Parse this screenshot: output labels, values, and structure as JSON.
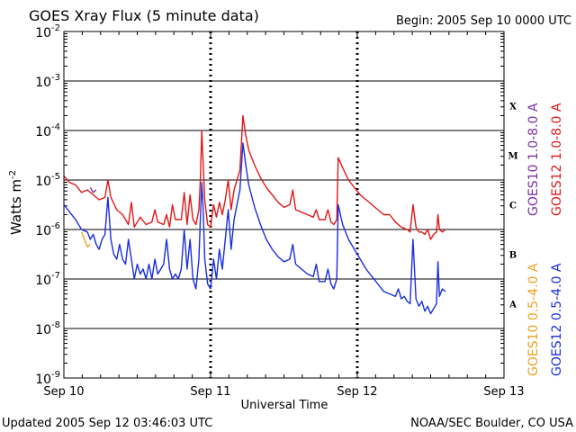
{
  "chart_data": {
    "type": "line",
    "title": "GOES Xray Flux (5 minute data)",
    "begin_label": "Begin:  2005 Sep 10 0000 UTC",
    "xlabel": "Universal Time",
    "ylabel_main": "Watts m",
    "ylabel_exp": "-2",
    "x_ticks": [
      "Sep 10",
      "Sep 11",
      "Sep 12",
      "Sep 13"
    ],
    "xlim_days": [
      0,
      3
    ],
    "ylim_log10": [
      -9,
      -2
    ],
    "y_ticks": [
      {
        "base": "10",
        "exp": "-2"
      },
      {
        "base": "10",
        "exp": "-3"
      },
      {
        "base": "10",
        "exp": "-4"
      },
      {
        "base": "10",
        "exp": "-5"
      },
      {
        "base": "10",
        "exp": "-6"
      },
      {
        "base": "10",
        "exp": "-7"
      },
      {
        "base": "10",
        "exp": "-8"
      },
      {
        "base": "10",
        "exp": "-9"
      }
    ],
    "flare_classes": [
      {
        "label": "X",
        "level_log10": -3.5
      },
      {
        "label": "M",
        "level_log10": -4.5
      },
      {
        "label": "C",
        "level_log10": -5.5
      },
      {
        "label": "B",
        "level_log10": -6.5
      },
      {
        "label": "A",
        "level_log10": -7.5
      }
    ],
    "legend": [
      {
        "name": "GOES10 1.0-8.0 A",
        "color": "#7b2fa8"
      },
      {
        "name": "GOES12 1.0-8.0 A",
        "color": "#e01818"
      },
      {
        "name": "GOES10 0.5-4.0 A",
        "color": "#f0a020"
      },
      {
        "name": "GOES12 0.5-4.0 A",
        "color": "#1a2ee0"
      }
    ],
    "series": [
      {
        "name": "GOES12 1.0-8.0 A",
        "color": "#e01818",
        "points": [
          [
            0.0,
            -4.92
          ],
          [
            0.04,
            -5.05
          ],
          [
            0.08,
            -5.1
          ],
          [
            0.12,
            -5.25
          ],
          [
            0.16,
            -5.2
          ],
          [
            0.2,
            -5.3
          ],
          [
            0.24,
            -5.4
          ],
          [
            0.28,
            -5.35
          ],
          [
            0.3,
            -5.0
          ],
          [
            0.32,
            -5.35
          ],
          [
            0.36,
            -5.6
          ],
          [
            0.4,
            -5.7
          ],
          [
            0.44,
            -5.9
          ],
          [
            0.46,
            -5.45
          ],
          [
            0.48,
            -5.95
          ],
          [
            0.52,
            -5.75
          ],
          [
            0.56,
            -5.9
          ],
          [
            0.6,
            -5.85
          ],
          [
            0.62,
            -5.6
          ],
          [
            0.64,
            -5.85
          ],
          [
            0.68,
            -5.9
          ],
          [
            0.7,
            -5.7
          ],
          [
            0.72,
            -5.95
          ],
          [
            0.74,
            -5.5
          ],
          [
            0.76,
            -5.8
          ],
          [
            0.8,
            -5.8
          ],
          [
            0.82,
            -5.25
          ],
          [
            0.84,
            -5.9
          ],
          [
            0.86,
            -5.3
          ],
          [
            0.88,
            -5.8
          ],
          [
            0.9,
            -5.9
          ],
          [
            0.92,
            -5.6
          ],
          [
            0.93,
            -5.0
          ],
          [
            0.94,
            -4.0
          ],
          [
            0.95,
            -4.7
          ],
          [
            0.96,
            -5.4
          ],
          [
            0.98,
            -5.9
          ],
          [
            1.0,
            -5.95
          ],
          [
            1.02,
            -5.5
          ],
          [
            1.04,
            -5.75
          ],
          [
            1.06,
            -5.45
          ],
          [
            1.08,
            -5.7
          ],
          [
            1.1,
            -5.4
          ],
          [
            1.12,
            -5.0
          ],
          [
            1.14,
            -5.6
          ],
          [
            1.16,
            -5.2
          ],
          [
            1.18,
            -5.0
          ],
          [
            1.2,
            -4.8
          ],
          [
            1.22,
            -3.7
          ],
          [
            1.24,
            -4.1
          ],
          [
            1.26,
            -4.4
          ],
          [
            1.3,
            -4.7
          ],
          [
            1.34,
            -4.95
          ],
          [
            1.38,
            -5.15
          ],
          [
            1.42,
            -5.3
          ],
          [
            1.46,
            -5.45
          ],
          [
            1.5,
            -5.55
          ],
          [
            1.54,
            -5.5
          ],
          [
            1.56,
            -5.2
          ],
          [
            1.58,
            -5.6
          ],
          [
            1.62,
            -5.65
          ],
          [
            1.66,
            -5.7
          ],
          [
            1.7,
            -5.75
          ],
          [
            1.72,
            -5.6
          ],
          [
            1.74,
            -5.8
          ],
          [
            1.78,
            -5.8
          ],
          [
            1.8,
            -5.6
          ],
          [
            1.82,
            -5.85
          ],
          [
            1.84,
            -5.9
          ],
          [
            1.86,
            -5.8
          ],
          [
            1.87,
            -4.55
          ],
          [
            1.9,
            -4.75
          ],
          [
            1.94,
            -5.0
          ],
          [
            1.98,
            -5.15
          ],
          [
            2.02,
            -5.3
          ],
          [
            2.06,
            -5.4
          ],
          [
            2.1,
            -5.5
          ],
          [
            2.14,
            -5.6
          ],
          [
            2.18,
            -5.7
          ],
          [
            2.22,
            -5.7
          ],
          [
            2.26,
            -5.85
          ],
          [
            2.3,
            -5.95
          ],
          [
            2.34,
            -6.0
          ],
          [
            2.36,
            -6.05
          ],
          [
            2.38,
            -5.5
          ],
          [
            2.4,
            -5.95
          ],
          [
            2.42,
            -6.05
          ],
          [
            2.44,
            -6.05
          ],
          [
            2.46,
            -6.1
          ],
          [
            2.48,
            -6.0
          ],
          [
            2.5,
            -6.2
          ],
          [
            2.52,
            -6.1
          ],
          [
            2.54,
            -6.05
          ],
          [
            2.55,
            -5.7
          ],
          [
            2.56,
            -6.0
          ],
          [
            2.58,
            -6.05
          ],
          [
            2.6,
            -6.0
          ]
        ]
      },
      {
        "name": "GOES12 0.5-4.0 A",
        "color": "#1a2ee0",
        "points": [
          [
            0.0,
            -5.5
          ],
          [
            0.04,
            -5.65
          ],
          [
            0.08,
            -5.8
          ],
          [
            0.12,
            -6.0
          ],
          [
            0.16,
            -6.05
          ],
          [
            0.18,
            -6.2
          ],
          [
            0.2,
            -6.1
          ],
          [
            0.22,
            -6.3
          ],
          [
            0.24,
            -6.4
          ],
          [
            0.26,
            -6.2
          ],
          [
            0.28,
            -6.1
          ],
          [
            0.3,
            -5.35
          ],
          [
            0.32,
            -6.2
          ],
          [
            0.34,
            -6.5
          ],
          [
            0.36,
            -6.6
          ],
          [
            0.38,
            -6.3
          ],
          [
            0.4,
            -6.6
          ],
          [
            0.42,
            -6.7
          ],
          [
            0.44,
            -6.2
          ],
          [
            0.46,
            -6.6
          ],
          [
            0.48,
            -7.0
          ],
          [
            0.5,
            -6.7
          ],
          [
            0.52,
            -6.9
          ],
          [
            0.54,
            -6.8
          ],
          [
            0.56,
            -7.0
          ],
          [
            0.58,
            -6.7
          ],
          [
            0.6,
            -7.0
          ],
          [
            0.62,
            -6.6
          ],
          [
            0.64,
            -6.9
          ],
          [
            0.66,
            -6.8
          ],
          [
            0.68,
            -6.7
          ],
          [
            0.7,
            -6.2
          ],
          [
            0.72,
            -6.8
          ],
          [
            0.74,
            -7.0
          ],
          [
            0.76,
            -6.9
          ],
          [
            0.78,
            -7.0
          ],
          [
            0.8,
            -6.8
          ],
          [
            0.82,
            -6.0
          ],
          [
            0.84,
            -6.8
          ],
          [
            0.86,
            -6.2
          ],
          [
            0.88,
            -7.0
          ],
          [
            0.9,
            -7.2
          ],
          [
            0.92,
            -6.6
          ],
          [
            0.93,
            -5.8
          ],
          [
            0.94,
            -5.05
          ],
          [
            0.95,
            -5.6
          ],
          [
            0.96,
            -6.6
          ],
          [
            0.98,
            -7.1
          ],
          [
            1.0,
            -7.2
          ],
          [
            1.02,
            -6.6
          ],
          [
            1.04,
            -7.0
          ],
          [
            1.06,
            -6.4
          ],
          [
            1.08,
            -6.8
          ],
          [
            1.1,
            -6.2
          ],
          [
            1.12,
            -5.6
          ],
          [
            1.14,
            -6.4
          ],
          [
            1.16,
            -5.8
          ],
          [
            1.18,
            -5.5
          ],
          [
            1.2,
            -5.2
          ],
          [
            1.22,
            -4.25
          ],
          [
            1.24,
            -4.7
          ],
          [
            1.26,
            -5.1
          ],
          [
            1.3,
            -5.55
          ],
          [
            1.34,
            -5.9
          ],
          [
            1.38,
            -6.2
          ],
          [
            1.42,
            -6.4
          ],
          [
            1.46,
            -6.55
          ],
          [
            1.5,
            -6.65
          ],
          [
            1.54,
            -6.6
          ],
          [
            1.56,
            -6.3
          ],
          [
            1.58,
            -6.7
          ],
          [
            1.62,
            -6.8
          ],
          [
            1.66,
            -6.9
          ],
          [
            1.7,
            -6.95
          ],
          [
            1.72,
            -6.7
          ],
          [
            1.74,
            -7.05
          ],
          [
            1.78,
            -7.05
          ],
          [
            1.8,
            -6.8
          ],
          [
            1.82,
            -7.1
          ],
          [
            1.84,
            -7.2
          ],
          [
            1.86,
            -7.0
          ],
          [
            1.87,
            -5.5
          ],
          [
            1.9,
            -5.9
          ],
          [
            1.94,
            -6.2
          ],
          [
            1.98,
            -6.4
          ],
          [
            2.02,
            -6.6
          ],
          [
            2.06,
            -6.8
          ],
          [
            2.1,
            -6.95
          ],
          [
            2.14,
            -7.1
          ],
          [
            2.18,
            -7.25
          ],
          [
            2.22,
            -7.3
          ],
          [
            2.26,
            -7.35
          ],
          [
            2.28,
            -7.2
          ],
          [
            2.3,
            -7.4
          ],
          [
            2.32,
            -7.35
          ],
          [
            2.34,
            -7.45
          ],
          [
            2.36,
            -7.5
          ],
          [
            2.38,
            -6.2
          ],
          [
            2.4,
            -7.4
          ],
          [
            2.42,
            -7.55
          ],
          [
            2.44,
            -7.45
          ],
          [
            2.46,
            -7.65
          ],
          [
            2.48,
            -7.55
          ],
          [
            2.5,
            -7.7
          ],
          [
            2.52,
            -7.6
          ],
          [
            2.54,
            -7.5
          ],
          [
            2.55,
            -6.65
          ],
          [
            2.56,
            -7.35
          ],
          [
            2.58,
            -7.2
          ],
          [
            2.6,
            -7.25
          ]
        ]
      },
      {
        "name": "GOES10 1.0-8.0 A",
        "color": "#7b2fa8",
        "points": [
          [
            0.18,
            -5.15
          ],
          [
            0.2,
            -5.25
          ],
          [
            0.22,
            -5.2
          ]
        ]
      },
      {
        "name": "GOES10 0.5-4.0 A",
        "color": "#f0a020",
        "points": [
          [
            0.12,
            -6.05
          ],
          [
            0.14,
            -6.2
          ],
          [
            0.16,
            -6.35
          ],
          [
            0.18,
            -6.3
          ]
        ]
      }
    ]
  },
  "footer": {
    "updated": "Updated 2005 Sep 12 03:46:03 UTC",
    "source": "NOAA/SEC Boulder, CO USA"
  }
}
